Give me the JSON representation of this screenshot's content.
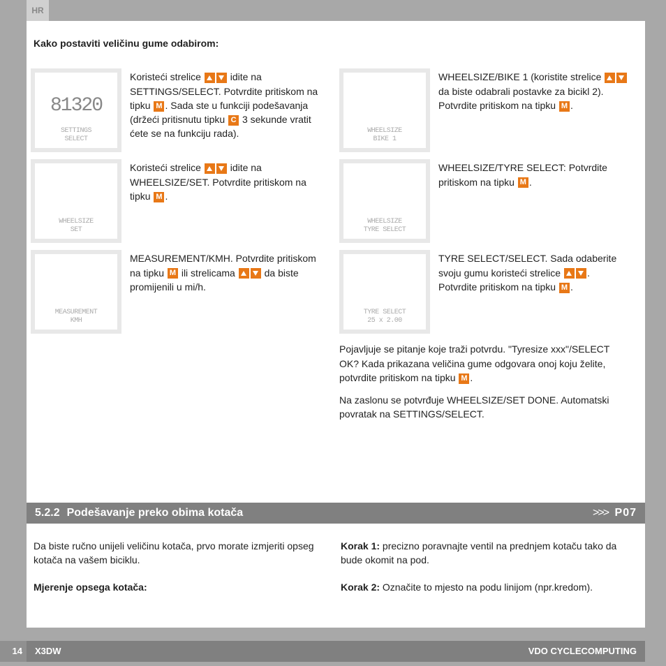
{
  "lang_tab": "HR",
  "heading": "Kako postaviti veličinu gume odabirom:",
  "left_items": [
    {
      "lcd_big": "81320",
      "lcd_small": "SETTINGS\nSELECT",
      "text_parts": [
        "Koristeći strelice ",
        "UP",
        "DOWN",
        " idite na SETTINGS/SELECT. Potvrdite pritiskom na tipku ",
        "M",
        ". Sada ste u funkciji podešavanja (držeći pritisnutu tipku ",
        "C",
        " 3 sekunde vratit ćete se na funkciju rada)."
      ]
    },
    {
      "lcd_big": "",
      "lcd_small": "WHEELSIZE\nSET",
      "text_parts": [
        "Koristeći strelice ",
        "UP",
        "DOWN",
        " idite na WHEELSIZE/SET. Potvrdite pritiskom na tipku ",
        "M",
        "."
      ]
    },
    {
      "lcd_big": "",
      "lcd_small": "MEASUREMENT\nKMH",
      "text_parts": [
        "MEASUREMENT/KMH. Potvrdite pritiskom na tipku ",
        "M",
        " ili strelicama ",
        "UP",
        "DOWN",
        " da biste promijenili u mi/h."
      ]
    }
  ],
  "right_items": [
    {
      "lcd_big": "",
      "lcd_small": "WHEELSIZE\nBIKE 1",
      "text_parts": [
        "WHEELSIZE/BIKE 1 (koristite strelice ",
        "UP",
        "DOWN",
        " da biste odabrali postavke za bicikl 2). Potvrdite pritiskom na tipku ",
        "M",
        "."
      ]
    },
    {
      "lcd_big": "",
      "lcd_small": "WHEELSIZE\nTYRE SELECT",
      "text_parts": [
        "WHEELSIZE/TYRE SELECT: Potvrdite pritiskom na tipku ",
        "M",
        "."
      ]
    },
    {
      "lcd_big": "",
      "lcd_small": "TYRE SELECT\n25 x 2.00",
      "text_parts": [
        "TYRE SELECT/SELECT. Sada odaberite svoju gumu koristeći strelice ",
        "UP",
        "DOWN",
        ". Potvrdite pritiskom na tipku ",
        "M",
        "."
      ]
    }
  ],
  "right_paras": [
    {
      "parts": [
        "Pojavljuje se pitanje koje traži potvrdu. \"Tyresize xxx\"/SELECT OK? Kada prikazana veličina gume odgovara onoj koju želite, potvrdite pritiskom na tipku ",
        "M",
        "."
      ]
    },
    {
      "parts": [
        "Na zaslonu se potvrđuje WHEELSIZE/SET DONE. Automatski povratak na SETTINGS/SELECT."
      ]
    }
  ],
  "section": {
    "num": "5.2.2",
    "title": "Podešavanje preko obima kotača",
    "ref": "P07",
    "arrows": ">>>"
  },
  "sec2_left": [
    {
      "bold": false,
      "text": "Da biste ručno unijeli veličinu kotača, prvo morate izmjeriti opseg kotača na vašem biciklu."
    },
    {
      "bold": true,
      "text": "Mjerenje opsega kotača:"
    }
  ],
  "sec2_right": [
    {
      "label": "Korak 1:",
      "text": " precizno poravnajte ventil na prednjem kotaču tako da bude okomit na pod."
    },
    {
      "label": "Korak 2:",
      "text": " Označite to mjesto na podu linijom (npr.kredom)."
    }
  ],
  "footer": {
    "page": "14",
    "model": "X3DW",
    "brand": "VDO CYCLECOMPUTING"
  },
  "colors": {
    "accent": "#e87817",
    "gray_header": "#808080",
    "bg": "#a8a8a8"
  }
}
